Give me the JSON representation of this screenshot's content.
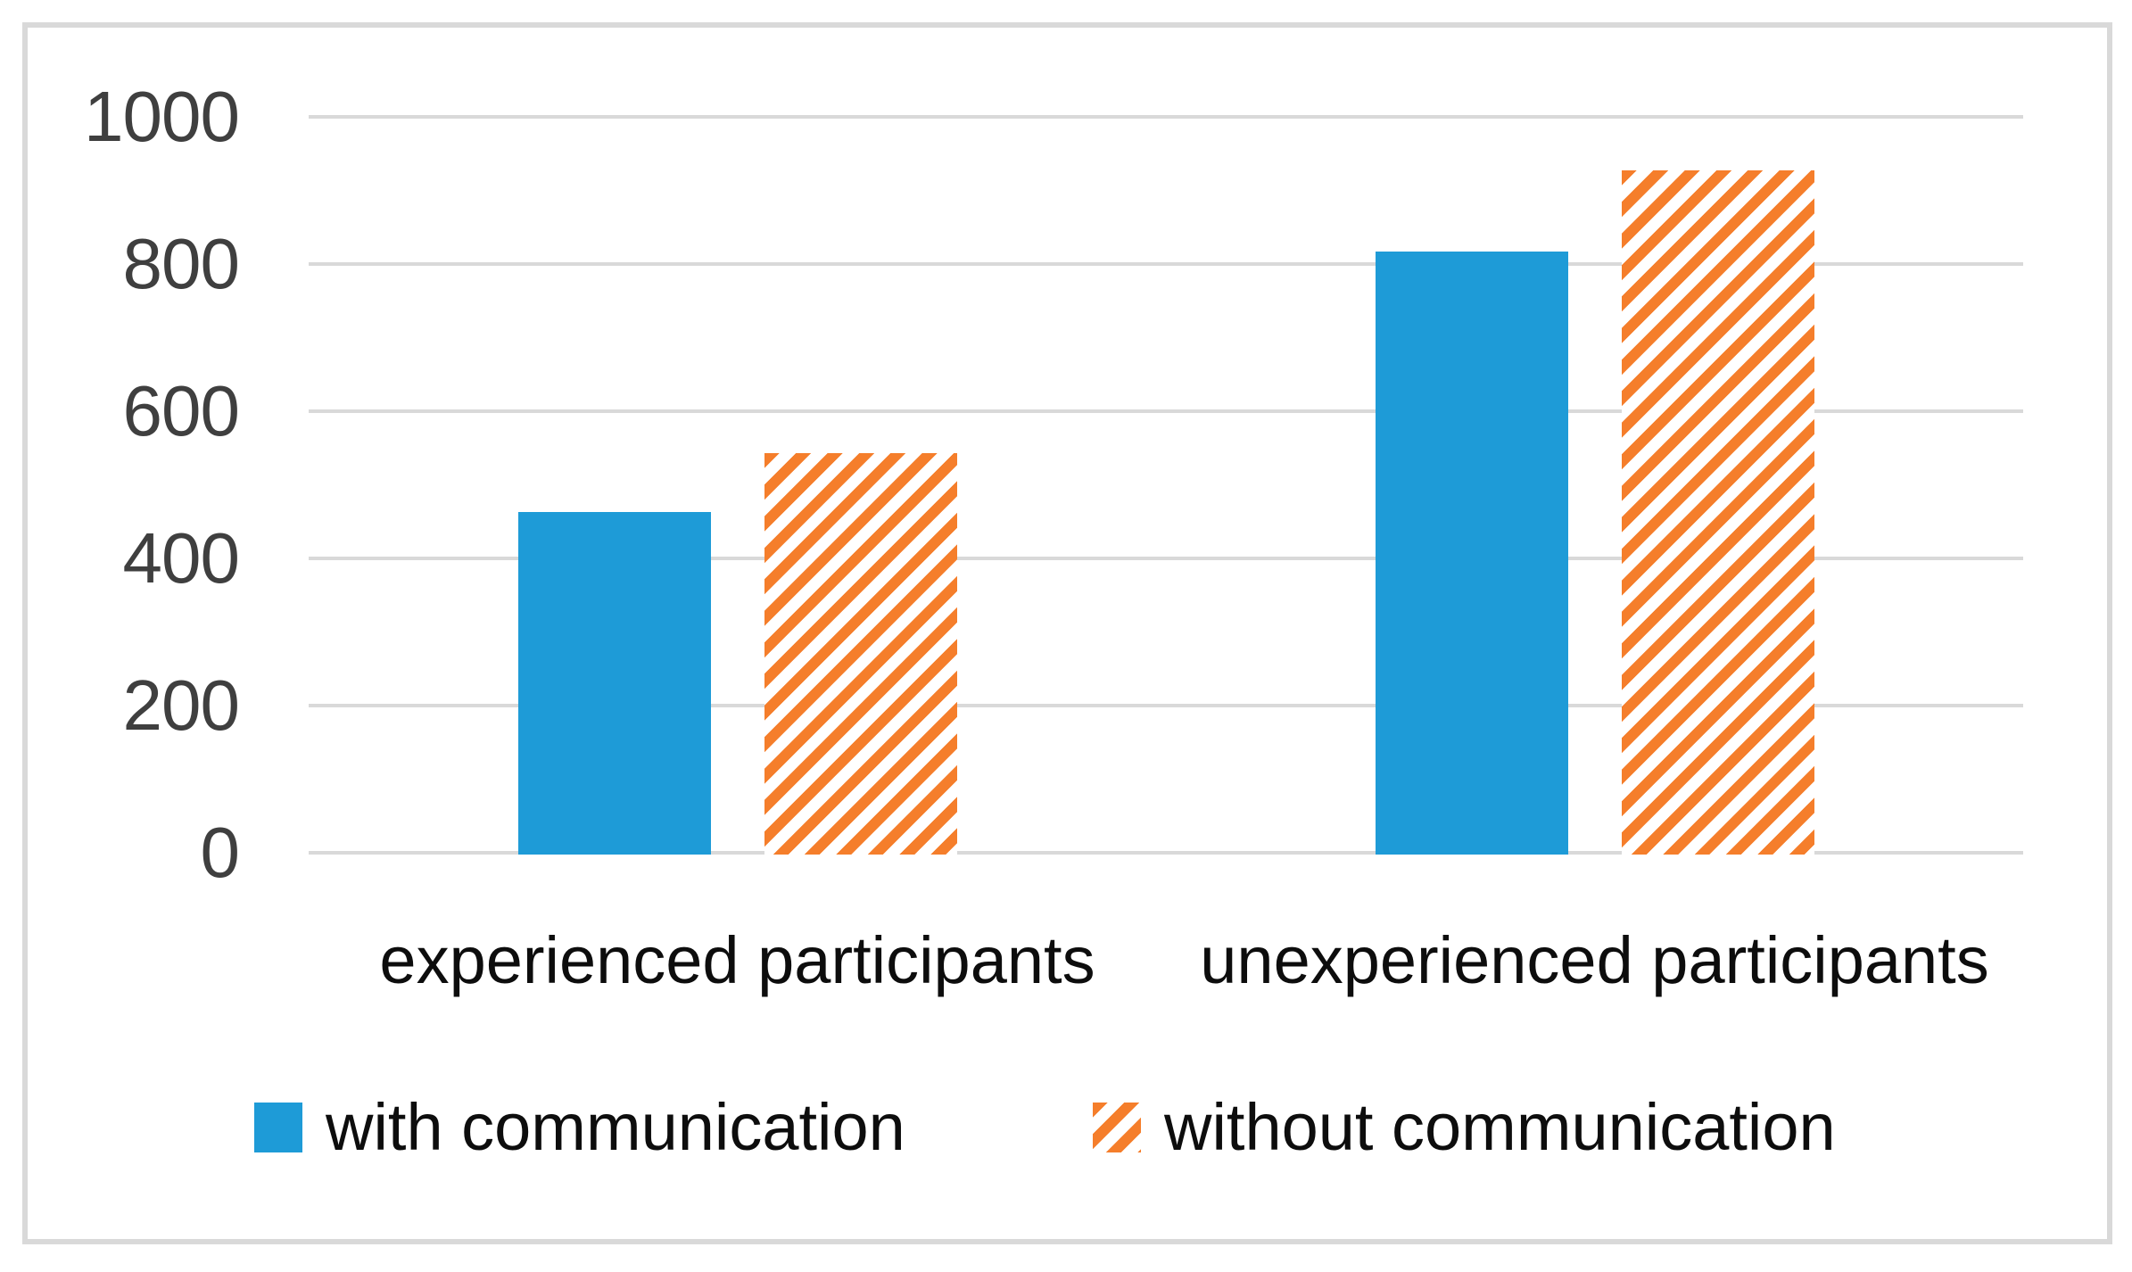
{
  "chart_data": {
    "type": "bar",
    "title": "",
    "categories": [
      "experienced participants",
      "unexperienced participants"
    ],
    "series": [
      {
        "name": "with communication",
        "pattern": "solid",
        "color": "#1e9bd7",
        "values": [
          465,
          820
        ]
      },
      {
        "name": "without communication",
        "pattern": "diagonal-stripes",
        "color": "#f57e2b",
        "values": [
          545,
          930
        ]
      }
    ],
    "ylim": [
      0,
      1000
    ],
    "yticks": [
      0,
      200,
      400,
      600,
      800,
      1000
    ],
    "xlabel": "",
    "ylabel": "",
    "grid": "horizontal",
    "gridline_color": "#d9d9d9",
    "frame_color": "#d9d9d9",
    "tick_label_color": "#3f3f3f",
    "text_color": "#0d0d0d",
    "legend_position": "bottom"
  }
}
